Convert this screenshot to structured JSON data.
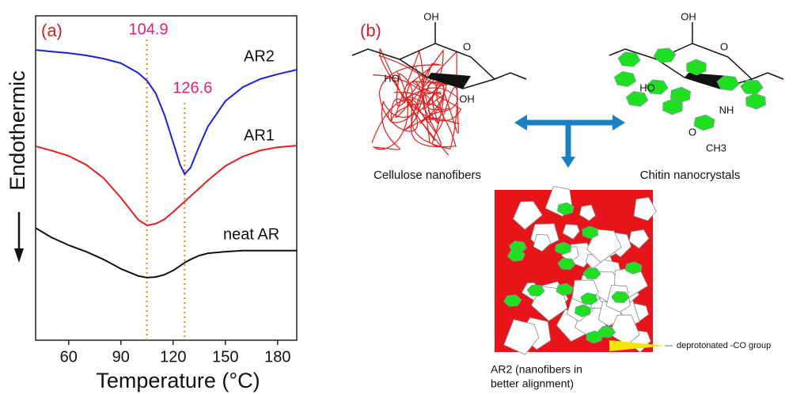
{
  "chart_data": {
    "type": "line",
    "panel_label": "(a)",
    "x_label": "Temperature (°C)",
    "y_label": "Endothermic",
    "x": [
      41,
      50,
      60,
      70,
      80,
      90,
      100,
      105,
      110,
      115,
      120,
      124,
      126.6,
      130,
      135,
      140,
      150,
      160,
      170,
      180,
      191
    ],
    "series": [
      {
        "name": "AR2",
        "color": "#1f1fe0",
        "values": [
          89.5,
          89.0,
          88.5,
          87.8,
          86.8,
          85.4,
          82.4,
          80.0,
          76.1,
          69.5,
          61.0,
          54.1,
          51.2,
          53.2,
          59.8,
          65.9,
          73.7,
          78.0,
          80.5,
          82.0,
          83.4
        ]
      },
      {
        "name": "AR1",
        "color": "#e81d1d",
        "values": [
          59.8,
          58.5,
          56.8,
          54.1,
          50.0,
          43.9,
          37.1,
          35.4,
          35.9,
          37.3,
          39.5,
          41.5,
          42.7,
          44.4,
          46.8,
          49.3,
          53.7,
          56.6,
          58.5,
          59.5,
          60.0
        ]
      },
      {
        "name": "neat AR",
        "color": "#111111",
        "values": [
          34.6,
          31.7,
          29.3,
          27.3,
          24.9,
          22.0,
          19.8,
          19.3,
          19.5,
          20.2,
          21.5,
          22.9,
          23.9,
          24.9,
          26.1,
          26.8,
          27.3,
          27.6,
          27.6,
          27.6,
          27.6
        ]
      }
    ],
    "xlim": [
      41,
      191
    ],
    "xticks": [
      60,
      90,
      120,
      150,
      180
    ],
    "ylim": [
      0,
      100
    ],
    "vlines": [
      104.9,
      126.6
    ],
    "vline_color": "#e8821e",
    "annotation_color": "#e0207a"
  },
  "diagram": {
    "panel_label": "(b)",
    "cellulose_label": "Cellulose nanofibers",
    "chitin_label": "Chitin nanocrystals",
    "cellulose_atoms": [
      "OH",
      "O",
      "HO",
      "OH"
    ],
    "chitin_atoms": [
      "OH",
      "O",
      "HO",
      "NH",
      "O",
      "CH3"
    ],
    "product_label": [
      "AR2 (nanofibers in",
      "better alignment)"
    ],
    "arrow_label": "deprotonated -CO group"
  }
}
